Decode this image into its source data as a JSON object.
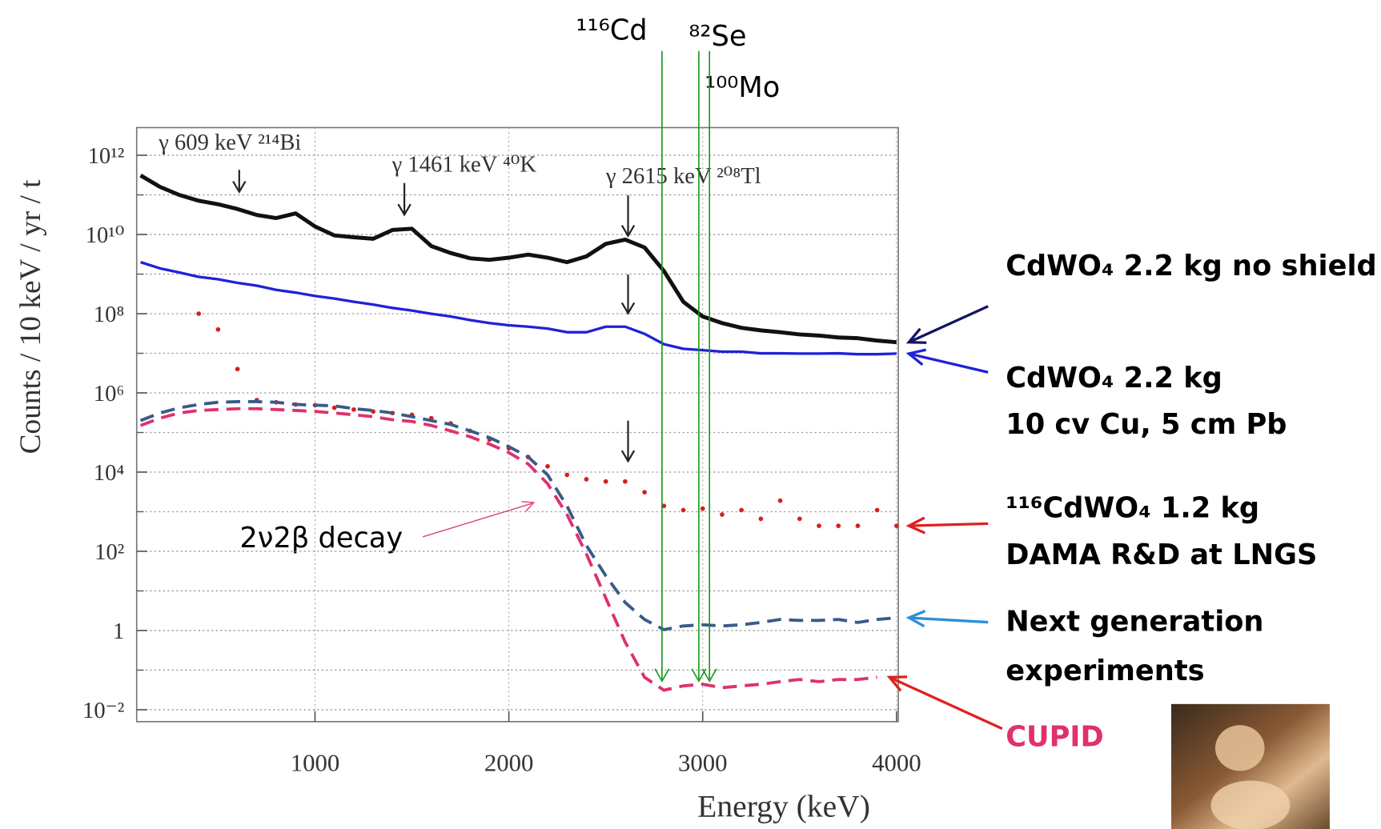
{
  "chart_data": {
    "type": "line",
    "log_y": true,
    "grid": true,
    "x_label": "Energy (keV)",
    "y_label": "Counts / 10 keV / yr / t",
    "xlim": [
      80,
      4000
    ],
    "xticks": [
      1000,
      2000,
      3000,
      4000
    ],
    "ylim": [
      0.005,
      5000000000000.0
    ],
    "yticks": [
      {
        "value": 0.01,
        "label": "10⁻²"
      },
      1,
      {
        "value": 100,
        "label": "10²"
      },
      {
        "value": 10000,
        "label": "10⁴"
      },
      {
        "value": 1000000,
        "label": "10⁶"
      },
      {
        "value": 100000000,
        "label": "10⁸"
      },
      {
        "value": 10000000000,
        "label": "10¹⁰"
      },
      {
        "value": 1000000000000,
        "label": "10¹²"
      }
    ],
    "y_minor_ticks": [
      0.1,
      10,
      1000,
      100000,
      10000000,
      1000000000,
      100000000000
    ],
    "x": [
      100,
      200,
      300,
      400,
      500,
      600,
      700,
      800,
      900,
      1000,
      1100,
      1200,
      1300,
      1400,
      1500,
      1600,
      1700,
      1800,
      1900,
      2000,
      2100,
      2200,
      2300,
      2400,
      2500,
      2600,
      2700,
      2800,
      2900,
      3000,
      3100,
      3200,
      3300,
      3400,
      3500,
      3600,
      3700,
      3800,
      3900,
      4000
    ],
    "series": [
      {
        "name": [
          "CdWO₄ 2.2 kg no shield"
        ],
        "color": "#111111",
        "style": "solid",
        "legend_text_color": "#000000",
        "values": [
          310000000000.0,
          160000000000.0,
          100000000000.0,
          71000000000.0,
          58000000000.0,
          44000000000.0,
          31000000000.0,
          26000000000.0,
          34000000000.0,
          16000000000.0,
          9500000000.0,
          8500000000.0,
          7800000000.0,
          13000000000.0,
          14000000000.0,
          5100000000.0,
          3400000000.0,
          2500000000.0,
          2300000000.0,
          2600000000.0,
          3100000000.0,
          2600000000.0,
          2000000000.0,
          2800000000.0,
          5800000000.0,
          7400000000.0,
          4700000000.0,
          1200000000.0,
          200000000.0,
          85000000.0,
          58000000.0,
          44000000.0,
          38000000.0,
          34000000.0,
          30000000.0,
          28000000.0,
          25000000.0,
          24000000.0,
          21000000.0,
          19000000.0
        ]
      },
      {
        "name": [
          "CdWO₄ 2.2 kg",
          "10 cv Cu, 5 cm Pb"
        ],
        "color": "#1f22d8",
        "style": "solid",
        "legend_text_color": "#000000",
        "values": [
          2000000000.0,
          1400000000.0,
          1100000000.0,
          850000000.0,
          740000000.0,
          600000000.0,
          510000000.0,
          400000000.0,
          340000000.0,
          280000000.0,
          240000000.0,
          200000000.0,
          170000000.0,
          140000000.0,
          120000000.0,
          100000000.0,
          85000000.0,
          69000000.0,
          58000000.0,
          51000000.0,
          47000000.0,
          42000000.0,
          34000000.0,
          34000000.0,
          47000000.0,
          47000000.0,
          31000000.0,
          17000000.0,
          13000000.0,
          12000000.0,
          11000000.0,
          11000000.0,
          10000000.0,
          10000000.0,
          9800000.0,
          9800000.0,
          10000000.0,
          9500000.0,
          9500000.0,
          9800000.0
        ]
      },
      {
        "name": [
          "¹¹⁶CdWO₄ 1.2 kg",
          "DAMA R&D at LNGS"
        ],
        "color": "#d42020",
        "style": "dots",
        "legend_text_color": "#000000",
        "values": [
          null,
          null,
          null,
          100000000.0,
          40000000.0,
          4000000.0,
          660000.0,
          580000.0,
          510000.0,
          490000.0,
          420000.0,
          380000.0,
          340000.0,
          310000.0,
          280000.0,
          230000.0,
          170000.0,
          110000.0,
          66000.0,
          40000.0,
          24000.0,
          14000.0,
          8500,
          6600,
          5800,
          5800,
          3100,
          1400,
          1100,
          1200,
          850,
          1100,
          660,
          1900,
          660,
          440,
          440,
          440,
          1100,
          440
        ]
      },
      {
        "name": [
          "Next generation",
          "experiments"
        ],
        "color": "#3a5a88",
        "style": "dashed",
        "legend_text_color": "#000000",
        "values": [
          200000.0,
          310000.0,
          420000.0,
          510000.0,
          580000.0,
          600000.0,
          600000.0,
          580000.0,
          510000.0,
          490000.0,
          470000.0,
          400000.0,
          360000.0,
          310000.0,
          250000.0,
          200000.0,
          160000.0,
          110000.0,
          74000.0,
          44000.0,
          24000.0,
          8500,
          1400,
          140,
          24,
          5.1,
          1.9,
          1.05,
          1.3,
          1.4,
          1.3,
          1.4,
          1.6,
          1.9,
          1.8,
          1.8,
          1.9,
          1.6,
          1.9,
          2.1
        ]
      },
      {
        "name": [
          "CUPID"
        ],
        "color": "#e0306e",
        "style": "dashed",
        "legend_text_color": "#e0306e",
        "values": [
          150000.0,
          230000.0,
          310000.0,
          360000.0,
          380000.0,
          400000.0,
          400000.0,
          380000.0,
          360000.0,
          340000.0,
          310000.0,
          280000.0,
          250000.0,
          210000.0,
          190000.0,
          150000.0,
          110000.0,
          78000.0,
          51000.0,
          31000.0,
          16000.0,
          5100,
          850,
          85,
          6.6,
          0.51,
          0.066,
          0.031,
          0.04,
          0.044,
          0.036,
          0.04,
          0.044,
          0.051,
          0.058,
          0.051,
          0.058,
          0.058,
          0.066,
          null
        ]
      }
    ],
    "annotations": [
      {
        "text": "γ 609 keV ²¹⁴Bi",
        "x": 609
      },
      {
        "text": "γ 1461 keV ⁴⁰K",
        "x": 1461
      },
      {
        "text": "γ 2615 keV ²⁰⁸Tl",
        "x": 2615
      }
    ],
    "isotopes": [
      {
        "text": "¹¹⁶Cd",
        "x": 2790
      },
      {
        "text": "⁸²Se",
        "x": 2980
      },
      {
        "text": "¹⁰⁰Mo",
        "x": 3035
      }
    ],
    "note": "2ν2β decay"
  }
}
